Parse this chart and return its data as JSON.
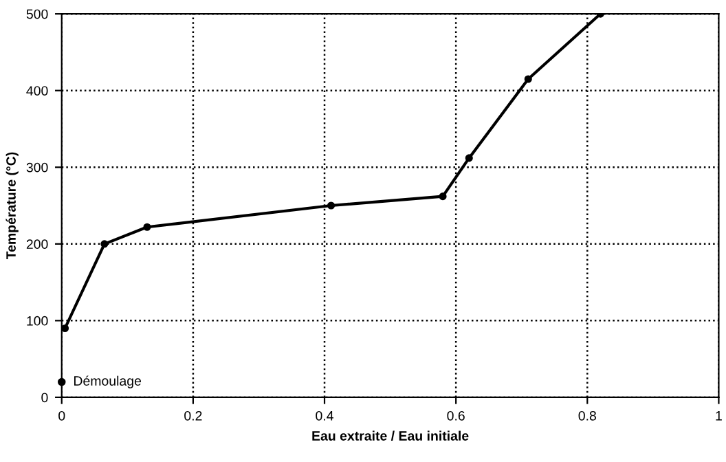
{
  "chart_data": {
    "type": "line",
    "xlabel": "Eau extraite / Eau initiale",
    "ylabel": "Température (°C)",
    "series": [
      {
        "color": "#000000",
        "marker": "circle",
        "x": [
          0.005,
          0.065,
          0.13,
          0.41,
          0.58,
          0.62,
          0.71,
          0.82
        ],
        "values": [
          90,
          200,
          222,
          250,
          262,
          312,
          415,
          500
        ]
      },
      {
        "type": "scatter",
        "color": "#000000",
        "marker": "circle",
        "x": [
          0
        ],
        "values": [
          20
        ]
      }
    ],
    "annotations": [
      {
        "text": "Démoulage",
        "x": 0,
        "y": 20
      }
    ],
    "xlim": [
      0,
      1
    ],
    "ylim": [
      0,
      500
    ],
    "xticks": [
      0,
      0.2,
      0.4,
      0.6,
      0.8,
      1
    ],
    "yticks": [
      0,
      100,
      200,
      300,
      400,
      500
    ],
    "grid": true,
    "line_style": "solid"
  }
}
